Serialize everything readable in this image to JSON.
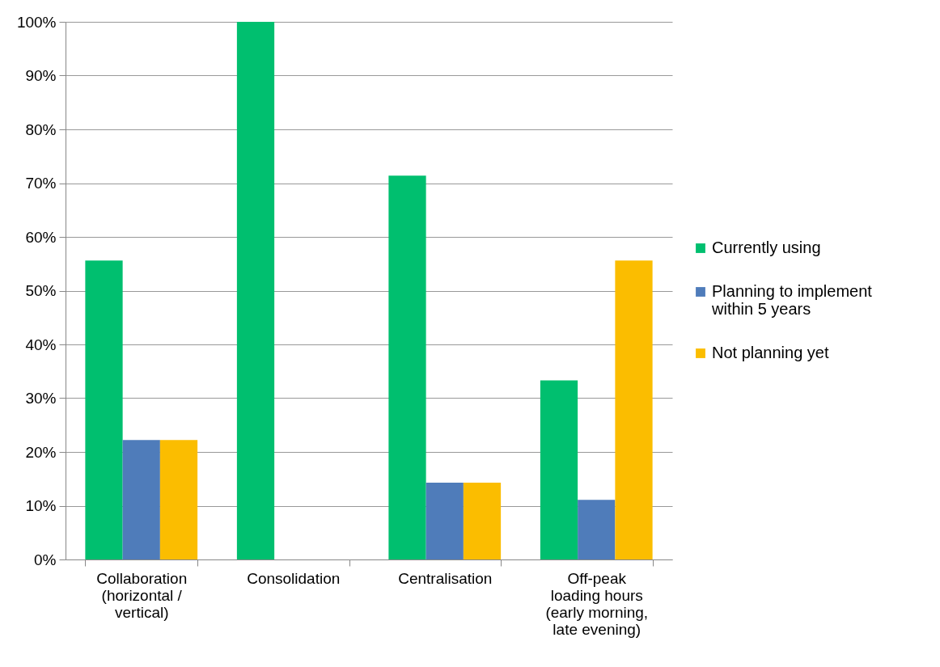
{
  "chart_data": {
    "type": "bar",
    "categories": [
      "Collaboration (horizontal / vertical)",
      "Consolidation",
      "Centralisation",
      "Off-peak loading hours (early morning, late evening)"
    ],
    "series": [
      {
        "name": "Currently using",
        "color": "#00bf6f",
        "values": [
          55.6,
          100,
          71.4,
          33.3
        ]
      },
      {
        "name": "Planning to implement within 5 years",
        "color": "#4f7cba",
        "values": [
          22.2,
          0,
          14.3,
          11.1
        ]
      },
      {
        "name": "Not planning yet",
        "color": "#fbbd00",
        "values": [
          22.2,
          0,
          14.3,
          55.6
        ]
      }
    ],
    "ylim": [
      0,
      100
    ],
    "yticks": [
      {
        "value": 0,
        "label": "0%"
      },
      {
        "value": 10,
        "label": "10%"
      },
      {
        "value": 20,
        "label": "20%"
      },
      {
        "value": 30,
        "label": "30%"
      },
      {
        "value": 40,
        "label": "40%"
      },
      {
        "value": 50,
        "label": "50%"
      },
      {
        "value": 60,
        "label": "60%"
      },
      {
        "value": 70,
        "label": "70%"
      },
      {
        "value": 80,
        "label": "80%"
      },
      {
        "value": 90,
        "label": "90%"
      },
      {
        "value": 100,
        "label": "100%"
      }
    ],
    "grid": "y",
    "legend": "right"
  }
}
